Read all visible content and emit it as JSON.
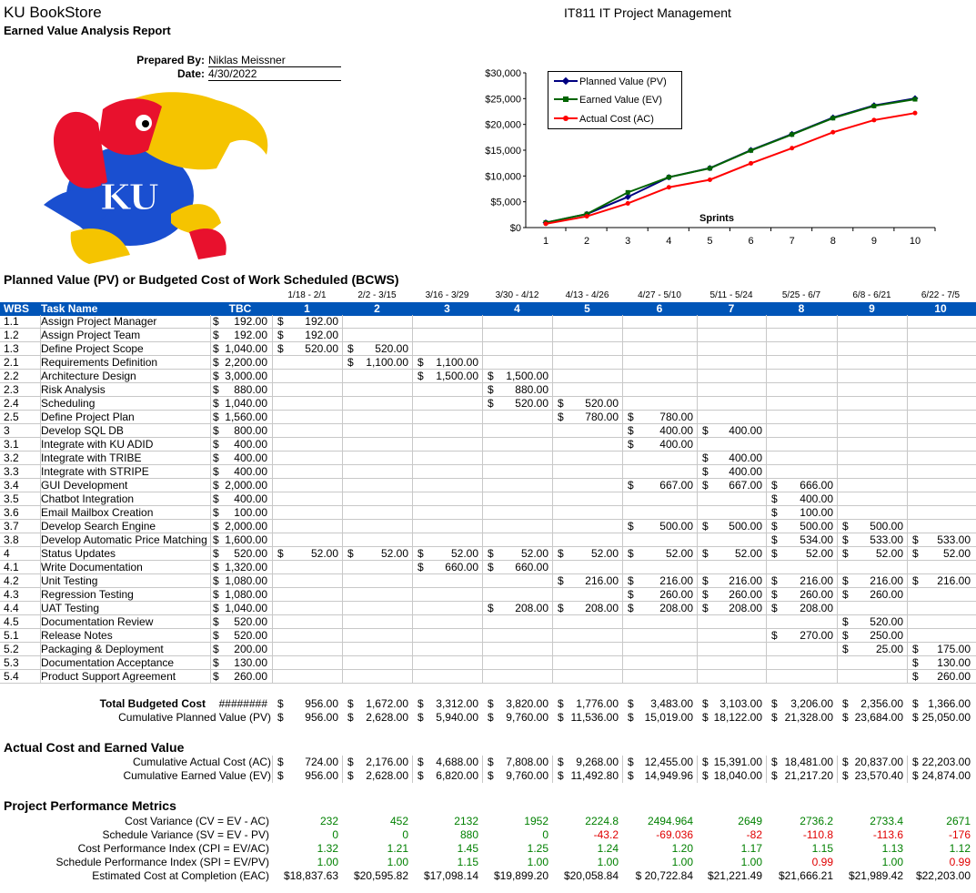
{
  "header": {
    "store": "KU BookStore",
    "report": "Earned Value Analysis Report",
    "course": "IT811 IT Project Management",
    "prepared_by_label": "Prepared By:",
    "prepared_by": "Niklas Meissner",
    "date_label": "Date:",
    "date": "4/30/2022"
  },
  "logo": {
    "text": "KU",
    "icon": "jayhawk-mascot-logo"
  },
  "sections": {
    "pv": "Planned Value (PV) or Budgeted Cost of Work Scheduled (BCWS)",
    "ac_ev": "Actual Cost and Earned Value",
    "metrics": "Project Performance Metrics"
  },
  "columns": {
    "wbs": "WBS",
    "task": "Task Name",
    "tbc": "TBC",
    "sprints": [
      "1",
      "2",
      "3",
      "4",
      "5",
      "6",
      "7",
      "8",
      "9",
      "10"
    ],
    "dates": [
      "1/18 - 2/1",
      "2/2 - 3/15",
      "3/16 - 3/29",
      "3/30 - 4/12",
      "4/13 - 4/26",
      "4/27 - 5/10",
      "5/11 - 5/24",
      "5/25 - 6/7",
      "6/8 - 6/21",
      "6/22 - 7/5"
    ]
  },
  "tasks": [
    {
      "wbs": "1.1",
      "name": "Assign Project Manager",
      "tbc": "$ 192.00",
      "v": [
        "$ 192.00",
        "",
        "",
        "",
        "",
        "",
        "",
        "",
        "",
        ""
      ]
    },
    {
      "wbs": "1.2",
      "name": "Assign Project Team",
      "tbc": "$ 192.00",
      "v": [
        "$ 192.00",
        "",
        "",
        "",
        "",
        "",
        "",
        "",
        "",
        ""
      ]
    },
    {
      "wbs": "1.3",
      "name": "Define Project Scope",
      "tbc": "$ 1,040.00",
      "v": [
        "$ 520.00",
        "$ 520.00",
        "",
        "",
        "",
        "",
        "",
        "",
        "",
        ""
      ]
    },
    {
      "wbs": "2.1",
      "name": "Requirements Definition",
      "tbc": "$ 2,200.00",
      "v": [
        "",
        "$ 1,100.00",
        "$ 1,100.00",
        "",
        "",
        "",
        "",
        "",
        "",
        ""
      ]
    },
    {
      "wbs": "2.2",
      "name": "Architecture Design",
      "tbc": "$ 3,000.00",
      "v": [
        "",
        "",
        "$ 1,500.00",
        "$ 1,500.00",
        "",
        "",
        "",
        "",
        "",
        ""
      ]
    },
    {
      "wbs": "2.3",
      "name": "Risk Analysis",
      "tbc": "$ 880.00",
      "v": [
        "",
        "",
        "",
        "$ 880.00",
        "",
        "",
        "",
        "",
        "",
        ""
      ]
    },
    {
      "wbs": "2.4",
      "name": "Scheduling",
      "tbc": "$ 1,040.00",
      "v": [
        "",
        "",
        "",
        "$ 520.00",
        "$ 520.00",
        "",
        "",
        "",
        "",
        ""
      ]
    },
    {
      "wbs": "2.5",
      "name": "Define Project Plan",
      "tbc": "$ 1,560.00",
      "v": [
        "",
        "",
        "",
        "",
        "$ 780.00",
        "$ 780.00",
        "",
        "",
        "",
        ""
      ]
    },
    {
      "wbs": "3",
      "name": "Develop SQL DB",
      "tbc": "$ 800.00",
      "v": [
        "",
        "",
        "",
        "",
        "",
        "$ 400.00",
        "$ 400.00",
        "",
        "",
        ""
      ]
    },
    {
      "wbs": "3.1",
      "name": "Integrate with KU ADID",
      "tbc": "$ 400.00",
      "v": [
        "",
        "",
        "",
        "",
        "",
        "$ 400.00",
        "",
        "",
        "",
        ""
      ]
    },
    {
      "wbs": "3.2",
      "name": "Integrate with TRIBE",
      "tbc": "$ 400.00",
      "v": [
        "",
        "",
        "",
        "",
        "",
        "",
        "$ 400.00",
        "",
        "",
        ""
      ]
    },
    {
      "wbs": "3.3",
      "name": "Integrate with STRIPE",
      "tbc": "$ 400.00",
      "v": [
        "",
        "",
        "",
        "",
        "",
        "",
        "$ 400.00",
        "",
        "",
        ""
      ]
    },
    {
      "wbs": "3.4",
      "name": "GUI Development",
      "tbc": "$ 2,000.00",
      "v": [
        "",
        "",
        "",
        "",
        "",
        "$ 667.00",
        "$ 667.00",
        "$ 666.00",
        "",
        ""
      ]
    },
    {
      "wbs": "3.5",
      "name": "Chatbot Integration",
      "tbc": "$ 400.00",
      "v": [
        "",
        "",
        "",
        "",
        "",
        "",
        "",
        "$ 400.00",
        "",
        ""
      ]
    },
    {
      "wbs": "3.6",
      "name": "Email Mailbox Creation",
      "tbc": "$ 100.00",
      "v": [
        "",
        "",
        "",
        "",
        "",
        "",
        "",
        "$ 100.00",
        "",
        ""
      ]
    },
    {
      "wbs": "3.7",
      "name": "Develop Search Engine",
      "tbc": "$ 2,000.00",
      "v": [
        "",
        "",
        "",
        "",
        "",
        "$ 500.00",
        "$ 500.00",
        "$ 500.00",
        "$ 500.00",
        ""
      ]
    },
    {
      "wbs": "3.8",
      "name": "Develop Automatic Price Matching",
      "tbc": "$ 1,600.00",
      "v": [
        "",
        "",
        "",
        "",
        "",
        "",
        "",
        "$ 534.00",
        "$ 533.00",
        "$ 533.00"
      ]
    },
    {
      "wbs": "4",
      "name": "Status Updates",
      "tbc": "$ 520.00",
      "v": [
        "$ 52.00",
        "$ 52.00",
        "$ 52.00",
        "$ 52.00",
        "$ 52.00",
        "$ 52.00",
        "$ 52.00",
        "$ 52.00",
        "$ 52.00",
        "$ 52.00"
      ]
    },
    {
      "wbs": "4.1",
      "name": "Write Documentation",
      "tbc": "$ 1,320.00",
      "v": [
        "",
        "",
        "$ 660.00",
        "$ 660.00",
        "",
        "",
        "",
        "",
        "",
        ""
      ]
    },
    {
      "wbs": "4.2",
      "name": "Unit Testing",
      "tbc": "$ 1,080.00",
      "v": [
        "",
        "",
        "",
        "",
        "$ 216.00",
        "$ 216.00",
        "$ 216.00",
        "$ 216.00",
        "$ 216.00",
        "$ 216.00"
      ]
    },
    {
      "wbs": "4.3",
      "name": "Regression Testing",
      "tbc": "$ 1,080.00",
      "v": [
        "",
        "",
        "",
        "",
        "",
        "$ 260.00",
        "$ 260.00",
        "$ 260.00",
        "$ 260.00",
        ""
      ]
    },
    {
      "wbs": "4.4",
      "name": "UAT Testing",
      "tbc": "$ 1,040.00",
      "v": [
        "",
        "",
        "",
        "$ 208.00",
        "$ 208.00",
        "$ 208.00",
        "$ 208.00",
        "$ 208.00",
        "",
        ""
      ]
    },
    {
      "wbs": "4.5",
      "name": "Documentation Review",
      "tbc": "$ 520.00",
      "v": [
        "",
        "",
        "",
        "",
        "",
        "",
        "",
        "",
        "$ 520.00",
        ""
      ]
    },
    {
      "wbs": "5.1",
      "name": "Release Notes",
      "tbc": "$ 520.00",
      "v": [
        "",
        "",
        "",
        "",
        "",
        "",
        "",
        "$ 270.00",
        "$ 250.00",
        ""
      ]
    },
    {
      "wbs": "5.2",
      "name": "Packaging & Deployment",
      "tbc": "$ 200.00",
      "v": [
        "",
        "",
        "",
        "",
        "",
        "",
        "",
        "",
        "$ 25.00",
        "$ 175.00"
      ]
    },
    {
      "wbs": "5.3",
      "name": "Documentation Acceptance",
      "tbc": "$ 130.00",
      "v": [
        "",
        "",
        "",
        "",
        "",
        "",
        "",
        "",
        "",
        "$ 130.00"
      ]
    },
    {
      "wbs": "5.4",
      "name": "Product Support Agreement",
      "tbc": "$ 260.00",
      "v": [
        "",
        "",
        "",
        "",
        "",
        "",
        "",
        "",
        "",
        "$ 260.00"
      ]
    }
  ],
  "totals": {
    "tbc_label": "Total Budgeted Cost",
    "tbc_value": "########",
    "tbc_row": [
      "$ 956.00",
      "$ 1,672.00",
      "$ 3,312.00",
      "$ 3,820.00",
      "$ 1,776.00",
      "$ 3,483.00",
      "$ 3,103.00",
      "$ 3,206.00",
      "$ 2,356.00",
      "$ 1,366.00"
    ],
    "cpv_label": "Cumulative Planned Value (PV)",
    "cpv_row": [
      "$ 956.00",
      "$ 2,628.00",
      "$ 5,940.00",
      "$ 9,760.00",
      "$11,536.00",
      "$ 15,019.00",
      "$18,122.00",
      "$21,328.00",
      "$23,684.00",
      "$25,050.00"
    ]
  },
  "ac_ev": {
    "ac_label": "Cumulative Actual Cost (AC)",
    "ac_row": [
      "$ 724.00",
      "$ 2,176.00",
      "$ 4,688.00",
      "$ 7,808.00",
      "$ 9,268.00",
      "$ 12,455.00",
      "$15,391.00",
      "$18,481.00",
      "$20,837.00",
      "$22,203.00"
    ],
    "ev_label": "Cumulative Earned Value (EV)",
    "ev_row": [
      "$ 956.00",
      "$ 2,628.00",
      "$ 6,820.00",
      "$ 9,760.00",
      "$11,492.80",
      "$ 14,949.96",
      "$18,040.00",
      "$21,217.20",
      "$23,570.40",
      "$24,874.00"
    ]
  },
  "metrics": {
    "cv_label": "Cost Variance (CV = EV - AC)",
    "cv": [
      "232",
      "452",
      "2132",
      "1952",
      "2224.8",
      "2494.964",
      "2649",
      "2736.2",
      "2733.4",
      "2671"
    ],
    "sv_label": "Schedule Variance (SV = EV - PV)",
    "sv": [
      "0",
      "0",
      "880",
      "0",
      "-43.2",
      "-69.036",
      "-82",
      "-110.8",
      "-113.6",
      "-176"
    ],
    "cpi_label": "Cost Performance Index (CPI = EV/AC)",
    "cpi": [
      "1.32",
      "1.21",
      "1.45",
      "1.25",
      "1.24",
      "1.20",
      "1.17",
      "1.15",
      "1.13",
      "1.12"
    ],
    "spi_label": "Schedule Performance Index (SPI = EV/PV)",
    "spi": [
      "1.00",
      "1.00",
      "1.15",
      "1.00",
      "1.00",
      "1.00",
      "1.00",
      "0.99",
      "1.00",
      "0.99"
    ],
    "eac_label": "Estimated Cost at Completion (EAC)",
    "eac": [
      "$18,837.63",
      "$20,595.82",
      "$17,098.14",
      "$19,899.20",
      "$20,058.84",
      "$ 20,722.84",
      "$21,221.49",
      "$21,666.21",
      "$21,989.42",
      "$22,203.00"
    ]
  },
  "colors": {
    "header_blue": "#0055b8",
    "pv": "#000080",
    "ev": "#006400",
    "ac": "#ff0000",
    "positive": "#008000",
    "negative": "#e00000"
  },
  "chart_data": {
    "type": "line",
    "xlabel": "Sprints",
    "x": [
      1,
      2,
      3,
      4,
      5,
      6,
      7,
      8,
      9,
      10
    ],
    "ylim": [
      0,
      30000
    ],
    "yticks": [
      "$0",
      "$5,000",
      "$10,000",
      "$15,000",
      "$20,000",
      "$25,000",
      "$30,000"
    ],
    "legend_position": "top-left",
    "series": [
      {
        "name": "Planned Value (PV)",
        "color": "#000080",
        "marker": "diamond",
        "values": [
          956,
          2628,
          5940,
          9760,
          11536,
          15019,
          18122,
          21328,
          23684,
          25050
        ]
      },
      {
        "name": "Earned Value (EV)",
        "color": "#006400",
        "marker": "square",
        "values": [
          956,
          2628,
          6820,
          9760,
          11492.8,
          14949.96,
          18040,
          21217.2,
          23570.4,
          24874
        ]
      },
      {
        "name": "Actual Cost (AC)",
        "color": "#ff0000",
        "marker": "circle",
        "values": [
          724,
          2176,
          4688,
          7808,
          9268,
          12455,
          15391,
          18481,
          20837,
          22203
        ]
      }
    ]
  }
}
